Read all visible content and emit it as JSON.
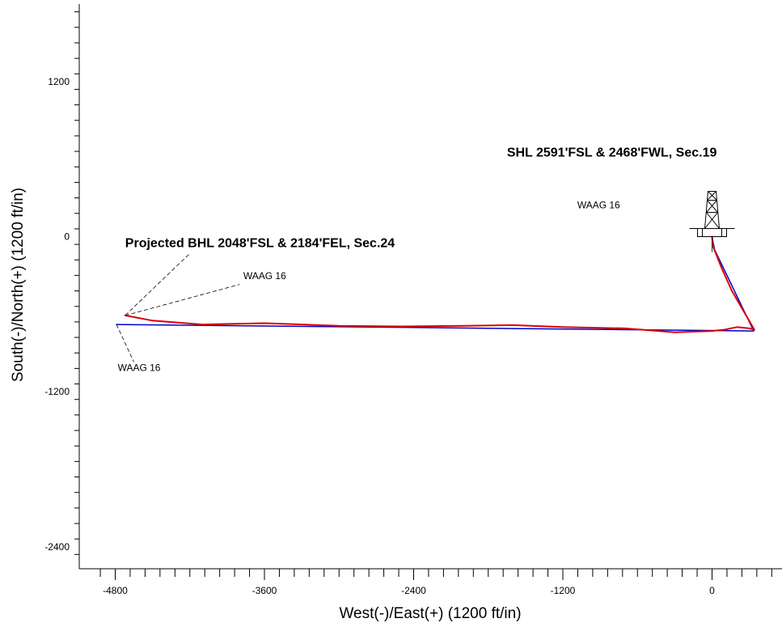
{
  "chart_data": {
    "type": "line",
    "xlabel": "West(-)/East(+) (1200 ft/in)",
    "ylabel": "South(-)/North(+) (1200 ft/in)",
    "x_ticks": [
      -4800,
      -3600,
      -2400,
      -1200,
      0
    ],
    "y_ticks": [
      1200,
      0,
      -1200,
      -2400
    ],
    "xlim": [
      -4970,
      550
    ],
    "ylim": [
      -2600,
      1820
    ],
    "grid": false,
    "series": [
      {
        "color": "#0000cc",
        "x": [
          0,
          20,
          335,
          -4790
        ],
        "y": [
          0,
          -100,
          -730,
          -680
        ]
      },
      {
        "color": "#dd0000",
        "x": [
          0,
          10,
          80,
          160,
          250,
          340,
          300,
          200,
          100,
          0,
          -300,
          -700,
          -1200,
          -1600,
          -2000,
          -2500,
          -3000,
          -3600,
          -4100,
          -4500,
          -4720
        ],
        "y": [
          0,
          -80,
          -250,
          -420,
          -570,
          -720,
          -710,
          -700,
          -720,
          -730,
          -740,
          -710,
          -700,
          -685,
          -690,
          -695,
          -690,
          -670,
          -680,
          -650,
          -610
        ]
      }
    ],
    "annotations": [
      {
        "text": "SHL 2591'FSL & 2468'FWL, Sec.19",
        "style": "bold",
        "x": -1650,
        "y": 620
      },
      {
        "text": "Projected BHL 2048'FSL & 2184'FEL, Sec.24",
        "style": "bold",
        "x": -4720,
        "y": -80
      },
      {
        "text": "WAAG 16",
        "style": "normal",
        "x": -740,
        "y": 220,
        "anchor": "end"
      },
      {
        "text": "WAAG 16",
        "style": "normal",
        "x": -3770,
        "y": -330
      },
      {
        "text": "WAAG 16",
        "style": "normal",
        "x": -4780,
        "y": -1040
      }
    ],
    "well_symbol": {
      "name": "rig-icon",
      "x": 0,
      "y": 0
    }
  }
}
